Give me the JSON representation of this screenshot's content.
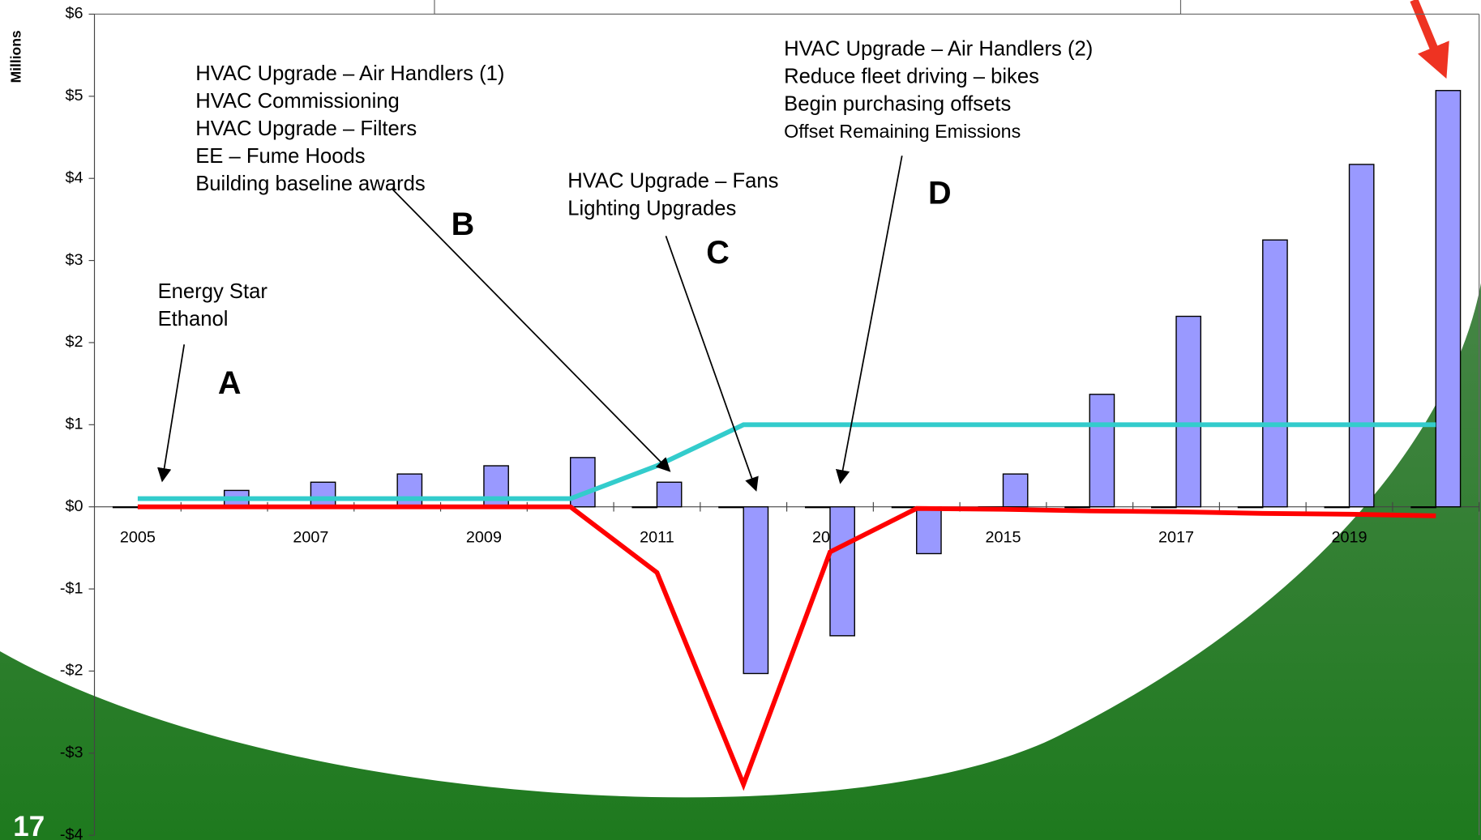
{
  "slide_number": "17",
  "chart_data": {
    "type": "bar",
    "y_axis_label": "Millions",
    "categories": [
      "2005",
      null,
      "2007",
      null,
      "2009",
      null,
      "2011",
      null,
      "2013",
      null,
      "2015",
      null,
      "2017",
      null,
      "2019",
      null
    ],
    "ylim": [
      -4,
      6
    ],
    "yticks": [
      {
        "value": -4,
        "label": "-$4"
      },
      {
        "value": -3,
        "label": "-$3"
      },
      {
        "value": -2,
        "label": "-$2"
      },
      {
        "value": -1,
        "label": "-$1"
      },
      {
        "value": 0,
        "label": "$0"
      },
      {
        "value": 1,
        "label": "$1"
      },
      {
        "value": 2,
        "label": "$2"
      },
      {
        "value": 3,
        "label": "$3"
      },
      {
        "value": 4,
        "label": "$4"
      },
      {
        "value": 5,
        "label": "$5"
      },
      {
        "value": 6,
        "label": "$6"
      }
    ],
    "series": [
      {
        "kind": "bar",
        "color": "#222222",
        "values": [
          0,
          0,
          0,
          0,
          0,
          0,
          0,
          0,
          0,
          0,
          0,
          0,
          0,
          0,
          0,
          0
        ]
      },
      {
        "kind": "bar",
        "color": "#9999ff",
        "values": [
          0,
          0.2,
          0.3,
          0.4,
          0.5,
          0.6,
          0.3,
          -2.03,
          -1.57,
          -0.57,
          0.4,
          1.37,
          2.32,
          3.25,
          4.17,
          5.07
        ]
      },
      {
        "kind": "line",
        "color": "#33cccc",
        "values": [
          0.1,
          0.1,
          0.1,
          0.1,
          0.1,
          0.1,
          0.5,
          1.0,
          1.0,
          1.0,
          1.0,
          1.0,
          1.0,
          1.0,
          1.0,
          1.0
        ]
      },
      {
        "kind": "line",
        "color": "#ff0000",
        "values": [
          0,
          0,
          0,
          0,
          0,
          0,
          -0.8,
          -3.38,
          -0.55,
          -0.02,
          -0.03,
          -0.05,
          -0.06,
          -0.08,
          -0.09,
          -0.11
        ]
      }
    ],
    "annotations": [
      {
        "lines": [
          "Energy Star",
          "Ethanol"
        ],
        "letter": "A"
      },
      {
        "lines": [
          "HVAC Upgrade – Air Handlers (1)",
          "HVAC Commissioning",
          "HVAC Upgrade – Filters",
          "EE – Fume Hoods",
          "Building baseline awards"
        ],
        "letter": "B"
      },
      {
        "lines": [
          "HVAC Upgrade – Fans",
          "Lighting Upgrades"
        ],
        "letter": "C"
      },
      {
        "lines": [
          "HVAC Upgrade – Air Handlers (2)",
          "Reduce fleet driving – bikes",
          "Begin purchasing offsets",
          "Offset Remaining Emissions"
        ],
        "letter": "D"
      }
    ]
  }
}
